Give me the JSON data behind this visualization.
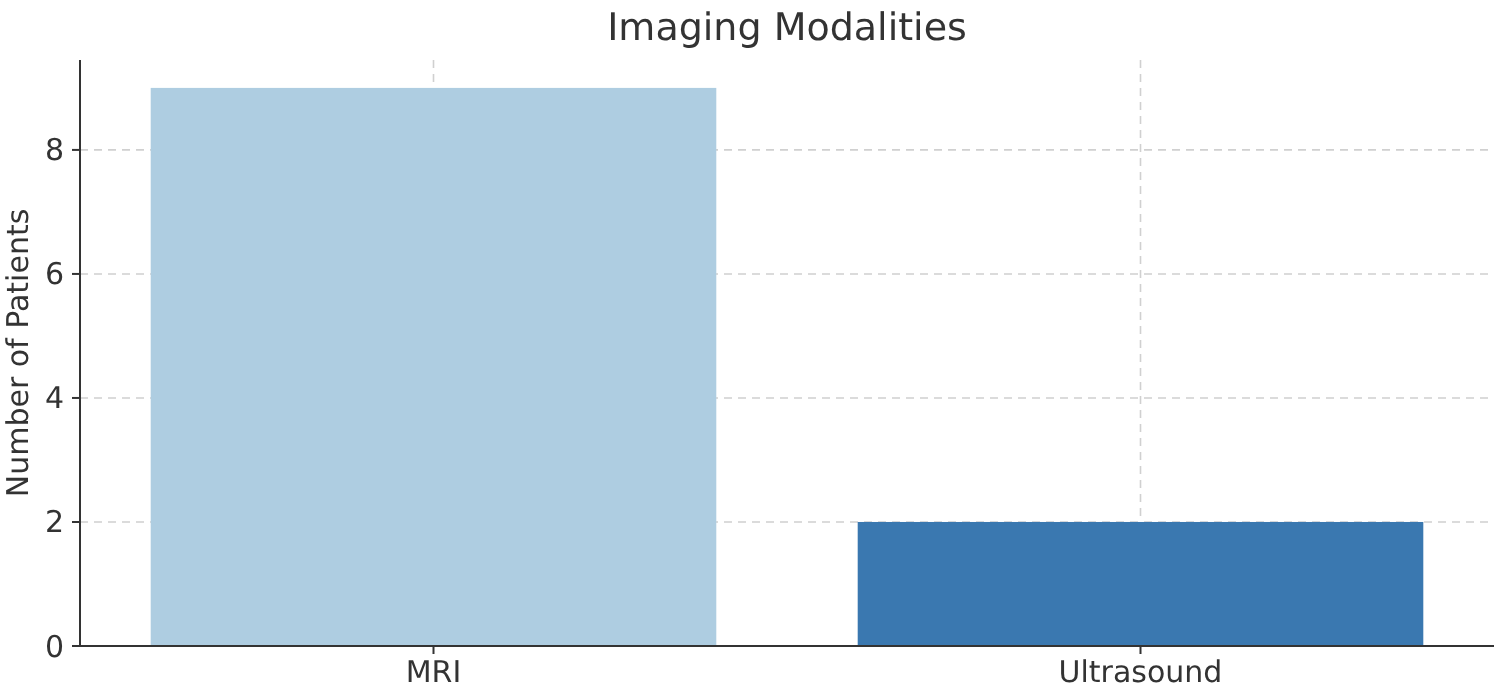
{
  "chart_data": {
    "type": "bar",
    "title": "Imaging Modalities",
    "ylabel": "Number of Patients",
    "categories": [
      "MRI",
      "Ultrasound"
    ],
    "values": [
      9,
      2
    ],
    "colors": [
      "#aecde1",
      "#3a78b0"
    ],
    "ylim": [
      0,
      9.45
    ],
    "yticks": [
      0,
      2,
      4,
      6,
      8
    ],
    "grid": true
  }
}
